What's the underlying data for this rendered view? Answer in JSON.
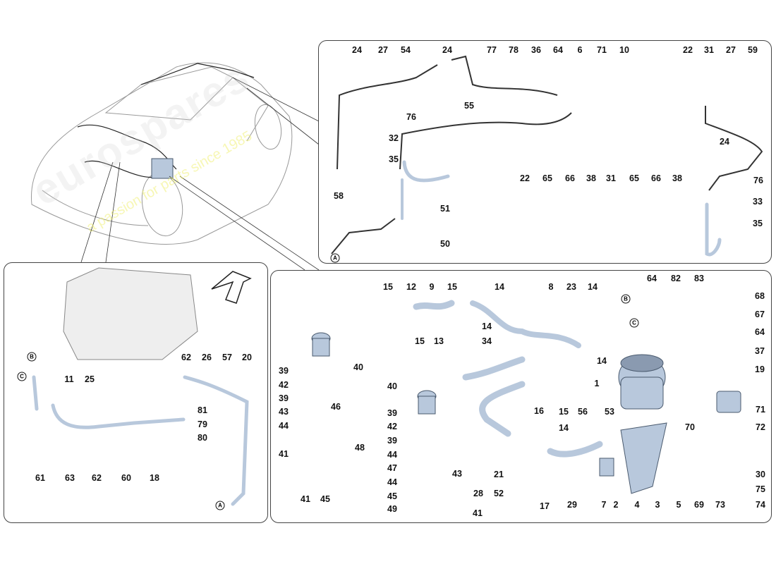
{
  "watermark": {
    "brand": "eurospares",
    "tagline": "a passion for parts since 1985"
  },
  "colors": {
    "hose": "#b8c8dc",
    "hose_outline": "#4a5a6e",
    "line": "#222222",
    "panel_border": "#444444"
  },
  "top_panel": {
    "callouts": [
      "24",
      "27",
      "54",
      "24",
      "77",
      "78",
      "36",
      "64",
      "6",
      "71",
      "10",
      "22",
      "31",
      "27",
      "59",
      "55",
      "76",
      "32",
      "35",
      "22",
      "65",
      "66",
      "38",
      "31",
      "65",
      "66",
      "38",
      "24",
      "76",
      "33",
      "35",
      "58",
      "51",
      "50"
    ],
    "refs": [
      "A"
    ]
  },
  "left_panel": {
    "callouts": [
      "62",
      "26",
      "57",
      "20",
      "11",
      "25",
      "81",
      "79",
      "80",
      "61",
      "63",
      "62",
      "60",
      "18"
    ],
    "refs": [
      "B",
      "C",
      "A"
    ]
  },
  "right_panel": {
    "callouts": [
      "15",
      "12",
      "9",
      "15",
      "14",
      "8",
      "23",
      "14",
      "64",
      "82",
      "83",
      "68",
      "67",
      "14",
      "34",
      "15",
      "13",
      "14",
      "64",
      "37",
      "19",
      "1",
      "40",
      "40",
      "39",
      "42",
      "39",
      "43",
      "44",
      "46",
      "16",
      "15",
      "56",
      "53",
      "39",
      "42",
      "39",
      "44",
      "47",
      "44",
      "45",
      "49",
      "14",
      "70",
      "71",
      "72",
      "48",
      "41",
      "43",
      "21",
      "28",
      "52",
      "41",
      "17",
      "29",
      "7",
      "2",
      "4",
      "3",
      "5",
      "69",
      "73",
      "30",
      "75",
      "74",
      "41",
      "45"
    ],
    "refs": [
      "B",
      "C"
    ]
  }
}
